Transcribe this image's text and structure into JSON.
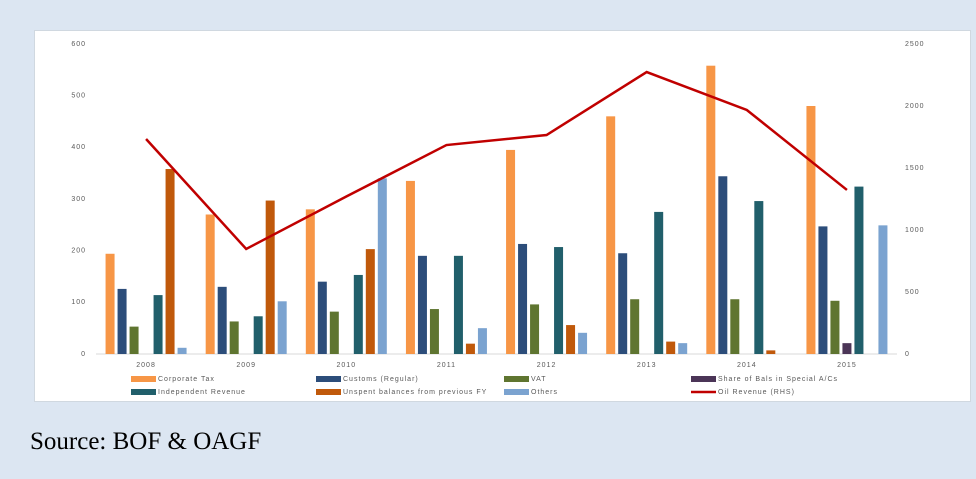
{
  "chart_data": {
    "type": "bar",
    "categories": [
      "2008",
      "2009",
      "2010",
      "2011",
      "2012",
      "2013",
      "2014",
      "2015"
    ],
    "series": [
      {
        "name": "Corporate Tax",
        "color": "#f79646",
        "values": [
          194,
          270,
          280,
          335,
          395,
          460,
          558,
          480
        ]
      },
      {
        "name": "Customs (Regular)",
        "color": "#2c4d7a",
        "values": [
          126,
          130,
          140,
          190,
          213,
          195,
          344,
          247
        ]
      },
      {
        "name": "VAT",
        "color": "#5f7530",
        "values": [
          53,
          63,
          82,
          87,
          96,
          106,
          106,
          103
        ]
      },
      {
        "name": "Share of Bals in Special A/Cs",
        "color": "#4b3557",
        "values": [
          0,
          0,
          0,
          0,
          0,
          0,
          0,
          21
        ]
      },
      {
        "name": "Independent Revenue",
        "color": "#215f6b",
        "values": [
          114,
          73,
          153,
          190,
          207,
          275,
          296,
          324
        ]
      },
      {
        "name": "Unspent balances from previous FY",
        "color": "#c0590b",
        "values": [
          358,
          297,
          203,
          20,
          56,
          24,
          7,
          0
        ]
      },
      {
        "name": "Others",
        "color": "#7ba3d0",
        "values": [
          12,
          102,
          340,
          50,
          41,
          21,
          0,
          249
        ]
      },
      {
        "name": "Oil Revenue (RHS)",
        "color": "#c00000",
        "type": "line",
        "axis": "y2",
        "values": [
          1734,
          847,
          1270,
          1685,
          1766,
          2274,
          1968,
          1323
        ]
      }
    ],
    "ylim": [
      0,
      600
    ],
    "yticks": [
      0,
      100,
      200,
      300,
      400,
      500,
      600
    ],
    "y2lim": [
      0,
      2500
    ],
    "y2ticks": [
      0,
      500,
      1000,
      1500,
      2000,
      2500
    ],
    "legend": "bottom"
  },
  "source": "Source: BOF & OAGF"
}
